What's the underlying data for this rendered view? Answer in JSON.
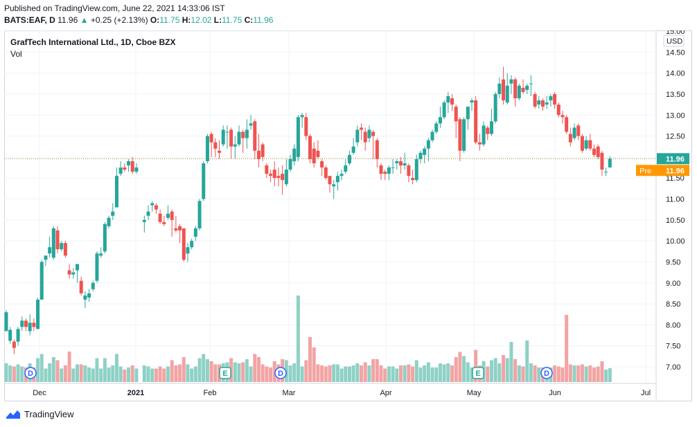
{
  "header": {
    "published": "Published on TradingView.com, June 22, 2021 14:33:06 IST",
    "symbol": "BATS:EAF, D",
    "last": "11.96",
    "change": "+0.25 (+2.13%)",
    "o_label": "O:",
    "o": "11.75",
    "h_label": "H:",
    "h": "12.02",
    "l_label": "L:",
    "l": "11.75",
    "c_label": "C:",
    "c": "11.96"
  },
  "legend": {
    "title": "GrafTech International Ltd., 1D, Cboe BZX",
    "vol": "Vol"
  },
  "footer": {
    "brand": "TradingView"
  },
  "colors": {
    "up": "#26a69a",
    "down": "#ef5350",
    "up_vol": "#8fd1c5",
    "down_vol": "#f2a4a4",
    "pre": "#ff9800",
    "dotted": "#9c7c2a",
    "event": "#2962ff"
  },
  "chart_data": {
    "type": "candlestick",
    "yaxis": {
      "currency": "USD",
      "ticks": [
        "7.00",
        "7.50",
        "8.00",
        "8.50",
        "9.00",
        "9.50",
        "10.00",
        "10.50",
        "11.00",
        "11.50",
        "12.00",
        "12.50",
        "13.00",
        "13.50",
        "14.00",
        "14.50",
        "15.00"
      ],
      "ylim": [
        6.53,
        15.0
      ]
    },
    "xaxis": {
      "labels": [
        "Dec",
        "2021",
        "Feb",
        "Mar",
        "Apr",
        "May",
        "Jun",
        "Jul"
      ]
    },
    "last_price_label": "11.96",
    "pre_label": "Pre",
    "pre_price_label": "11.96",
    "events": [
      {
        "type": "D",
        "x": 44
      },
      {
        "type": "E",
        "x": 325
      },
      {
        "type": "D",
        "x": 405
      },
      {
        "type": "E",
        "x": 690
      },
      {
        "type": "D",
        "x": 789
      }
    ],
    "candles": [
      [
        7.85,
        8.3,
        8.35,
        7.85
      ],
      [
        7.62,
        7.88,
        7.95,
        7.55
      ],
      [
        7.6,
        7.45,
        7.65,
        7.3
      ],
      [
        7.6,
        7.9,
        7.95,
        7.5
      ],
      [
        7.95,
        8.1,
        8.2,
        7.85
      ],
      [
        8.1,
        7.95,
        8.15,
        7.85
      ],
      [
        7.85,
        8.05,
        8.25,
        7.75
      ],
      [
        8.05,
        7.95,
        8.15,
        7.85
      ],
      [
        7.9,
        8.6,
        8.65,
        7.9
      ],
      [
        8.6,
        9.5,
        9.55,
        8.6
      ],
      [
        9.55,
        9.65,
        9.65,
        9.4
      ],
      [
        9.7,
        9.85,
        10.1,
        9.6
      ],
      [
        9.6,
        10.3,
        10.35,
        9.55
      ],
      [
        10.25,
        9.8,
        10.35,
        9.7
      ],
      [
        9.8,
        9.95,
        10.0,
        9.75
      ],
      [
        9.95,
        9.65,
        10.0,
        9.6
      ],
      [
        9.3,
        9.2,
        9.45,
        9.1
      ],
      [
        9.2,
        9.25,
        9.35,
        9.1
      ],
      [
        9.3,
        9.45,
        9.45,
        9.0
      ],
      [
        9.05,
        8.75,
        9.15,
        8.7
      ],
      [
        8.6,
        8.7,
        8.8,
        8.4
      ],
      [
        8.65,
        8.75,
        8.85,
        8.55
      ],
      [
        8.85,
        9.0,
        9.05,
        8.8
      ],
      [
        9.05,
        9.7,
        9.75,
        9.0
      ],
      [
        9.65,
        9.7,
        9.85,
        9.6
      ],
      [
        9.75,
        10.4,
        10.45,
        9.7
      ],
      [
        10.35,
        10.55,
        10.6,
        10.3
      ],
      [
        10.6,
        10.7,
        10.9,
        10.5
      ],
      [
        10.8,
        11.55,
        11.75,
        10.8
      ],
      [
        11.6,
        11.75,
        11.9,
        11.55
      ],
      [
        11.75,
        11.7,
        11.85,
        11.65
      ],
      [
        11.8,
        11.9,
        11.95,
        11.65
      ],
      [
        11.9,
        11.65,
        12.0,
        11.6
      ],
      [
        11.65,
        11.75,
        11.85,
        11.6
      ],
      [
        10.45,
        10.5,
        10.6,
        10.2
      ],
      [
        10.6,
        10.7,
        10.85,
        10.5
      ],
      [
        10.85,
        10.9,
        10.95,
        10.7
      ],
      [
        10.85,
        10.75,
        10.9,
        10.65
      ],
      [
        10.65,
        10.45,
        10.75,
        10.4
      ],
      [
        10.45,
        10.4,
        10.6,
        10.35
      ],
      [
        10.55,
        10.65,
        10.85,
        10.5
      ],
      [
        10.7,
        10.5,
        10.75,
        10.1
      ],
      [
        10.3,
        10.25,
        10.6,
        10.2
      ],
      [
        10.35,
        10.25,
        10.4,
        9.95
      ],
      [
        10.3,
        9.55,
        10.3,
        9.5
      ],
      [
        9.7,
        9.85,
        9.95,
        9.5
      ],
      [
        9.85,
        10.0,
        10.05,
        9.8
      ],
      [
        10.1,
        10.3,
        10.35,
        10.0
      ],
      [
        10.3,
        10.95,
        11.0,
        10.25
      ],
      [
        11.0,
        11.85,
        11.9,
        10.95
      ],
      [
        11.9,
        12.5,
        12.55,
        11.85
      ],
      [
        12.55,
        12.35,
        12.6,
        12.0
      ],
      [
        12.35,
        12.2,
        12.45,
        12.0
      ],
      [
        12.15,
        12.1,
        12.4,
        11.95
      ],
      [
        12.3,
        12.65,
        12.75,
        12.25
      ],
      [
        12.6,
        12.6,
        12.75,
        12.2
      ],
      [
        12.65,
        12.25,
        12.7,
        11.95
      ],
      [
        12.25,
        12.3,
        12.5,
        11.95
      ],
      [
        12.3,
        12.6,
        12.75,
        12.25
      ],
      [
        12.6,
        12.45,
        12.65,
        12.1
      ],
      [
        12.45,
        12.65,
        12.9,
        12.2
      ],
      [
        12.75,
        12.8,
        13.0,
        12.65
      ],
      [
        12.85,
        12.15,
        12.9,
        11.95
      ],
      [
        12.15,
        11.95,
        12.55,
        11.75
      ],
      [
        12.3,
        12.0,
        12.35,
        11.9
      ],
      [
        11.8,
        11.6,
        11.85,
        11.5
      ],
      [
        11.6,
        11.55,
        11.7,
        11.4
      ],
      [
        11.7,
        11.5,
        11.9,
        11.3
      ],
      [
        11.55,
        11.5,
        11.75,
        11.3
      ],
      [
        11.6,
        11.45,
        11.8,
        11.1
      ],
      [
        11.35,
        11.7,
        11.95,
        11.3
      ],
      [
        11.7,
        11.95,
        12.05,
        11.65
      ],
      [
        11.9,
        12.2,
        12.3,
        11.8
      ],
      [
        12.0,
        12.95,
        13.0,
        11.9
      ],
      [
        12.95,
        13.0,
        13.05,
        12.7
      ],
      [
        12.95,
        12.5,
        13.05,
        12.4
      ],
      [
        12.5,
        11.95,
        12.55,
        11.85
      ],
      [
        12.2,
        11.85,
        12.35,
        11.75
      ],
      [
        12.15,
        12.0,
        12.4,
        11.95
      ],
      [
        11.9,
        11.75,
        11.95,
        11.55
      ],
      [
        11.75,
        11.5,
        11.8,
        11.45
      ],
      [
        11.55,
        11.35,
        11.55,
        11.15
      ],
      [
        11.3,
        11.35,
        11.45,
        11.0
      ],
      [
        11.4,
        11.55,
        11.65,
        11.2
      ],
      [
        11.55,
        11.6,
        11.7,
        11.45
      ],
      [
        11.65,
        11.8,
        11.95,
        11.6
      ],
      [
        11.85,
        12.05,
        12.15,
        11.8
      ],
      [
        12.1,
        12.25,
        12.45,
        12.05
      ],
      [
        12.35,
        12.65,
        12.75,
        12.25
      ],
      [
        12.7,
        12.65,
        12.8,
        12.4
      ],
      [
        12.6,
        12.35,
        12.7,
        12.15
      ],
      [
        12.45,
        12.65,
        12.75,
        12.35
      ],
      [
        12.6,
        12.5,
        12.65,
        11.95
      ],
      [
        12.4,
        11.95,
        12.45,
        11.75
      ],
      [
        11.8,
        11.6,
        11.85,
        11.45
      ],
      [
        11.65,
        11.6,
        11.7,
        11.45
      ],
      [
        11.6,
        11.75,
        11.8,
        11.45
      ],
      [
        11.75,
        11.75,
        11.95,
        11.6
      ],
      [
        11.85,
        11.9,
        11.95,
        11.7
      ],
      [
        11.9,
        11.8,
        12.0,
        11.6
      ],
      [
        11.8,
        11.85,
        12.1,
        11.7
      ],
      [
        11.8,
        11.55,
        11.85,
        11.4
      ],
      [
        11.5,
        11.45,
        11.7,
        11.35
      ],
      [
        11.45,
        11.95,
        12.05,
        11.4
      ],
      [
        11.95,
        12.1,
        12.15,
        11.85
      ],
      [
        12.05,
        12.2,
        12.25,
        11.85
      ],
      [
        12.2,
        12.4,
        12.45,
        11.9
      ],
      [
        12.4,
        12.6,
        12.65,
        12.35
      ],
      [
        12.6,
        12.8,
        12.85,
        12.55
      ],
      [
        12.8,
        12.95,
        13.2,
        12.7
      ],
      [
        12.95,
        13.3,
        13.35,
        12.9
      ],
      [
        13.3,
        13.45,
        13.55,
        13.05
      ],
      [
        13.4,
        13.25,
        13.5,
        13.1
      ],
      [
        13.2,
        12.85,
        13.25,
        12.45
      ],
      [
        12.9,
        12.15,
        12.95,
        11.9
      ],
      [
        12.15,
        12.9,
        12.95,
        12.1
      ],
      [
        12.9,
        13.2,
        13.2,
        12.65
      ],
      [
        13.3,
        13.35,
        13.4,
        13.1
      ],
      [
        13.35,
        12.35,
        13.45,
        12.3
      ],
      [
        12.35,
        12.3,
        12.55,
        12.15
      ],
      [
        12.3,
        12.75,
        12.85,
        12.25
      ],
      [
        12.7,
        12.55,
        12.75,
        12.4
      ],
      [
        12.55,
        12.85,
        13.15,
        12.5
      ],
      [
        12.85,
        13.5,
        13.55,
        12.8
      ],
      [
        13.5,
        13.75,
        13.9,
        13.4
      ],
      [
        13.85,
        13.35,
        14.15,
        13.25
      ],
      [
        13.3,
        13.7,
        14.0,
        13.25
      ],
      [
        13.75,
        13.85,
        13.95,
        13.5
      ],
      [
        13.85,
        13.4,
        13.9,
        13.2
      ],
      [
        13.4,
        13.7,
        13.75,
        13.35
      ],
      [
        13.65,
        13.55,
        13.85,
        13.5
      ],
      [
        13.6,
        13.7,
        13.75,
        13.5
      ],
      [
        13.75,
        13.75,
        13.95,
        13.45
      ],
      [
        13.5,
        13.2,
        13.55,
        13.15
      ],
      [
        13.25,
        13.35,
        13.45,
        13.15
      ],
      [
        13.35,
        13.2,
        13.4,
        13.1
      ],
      [
        13.25,
        13.3,
        13.45,
        13.15
      ],
      [
        13.35,
        13.45,
        13.5,
        13.2
      ],
      [
        13.5,
        13.25,
        13.55,
        13.15
      ],
      [
        13.25,
        13.0,
        13.3,
        12.95
      ],
      [
        13.0,
        12.95,
        13.1,
        12.8
      ],
      [
        12.95,
        12.6,
        13.0,
        12.55
      ],
      [
        12.55,
        12.35,
        12.7,
        12.25
      ],
      [
        12.45,
        12.7,
        12.8,
        12.4
      ],
      [
        12.75,
        12.5,
        12.8,
        12.4
      ],
      [
        12.5,
        12.15,
        12.55,
        12.1
      ],
      [
        12.2,
        12.4,
        12.5,
        12.15
      ],
      [
        12.4,
        12.2,
        12.55,
        12.15
      ],
      [
        12.2,
        12.05,
        12.3,
        12.0
      ],
      [
        12.25,
        12.0,
        12.3,
        11.95
      ],
      [
        12.1,
        11.7,
        12.15,
        11.55
      ],
      [
        11.65,
        11.65,
        11.75,
        11.55
      ],
      [
        11.75,
        11.96,
        12.02,
        11.75
      ]
    ],
    "volumes_up": [
      "v"
    ],
    "note": ""
  }
}
